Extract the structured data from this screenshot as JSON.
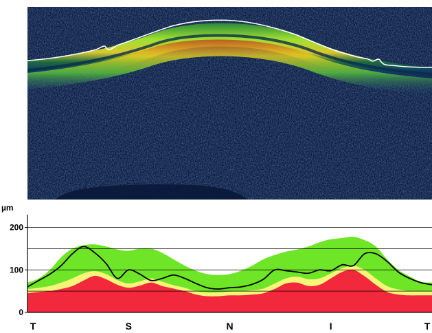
{
  "chart_data": {
    "type": "line",
    "title": "",
    "xlabel": "",
    "ylabel": "µm",
    "ylim": [
      0,
      230
    ],
    "yticks": [
      0,
      100,
      200
    ],
    "gridlines_y": [
      50,
      100,
      150,
      200
    ],
    "sector_labels": [
      "T",
      "S",
      "N",
      "I",
      "T"
    ],
    "sector_positions_deg": [
      0,
      90,
      180,
      270,
      360
    ],
    "x_domain_deg": [
      0,
      360
    ],
    "bands": {
      "x": [
        0,
        10,
        20,
        30,
        40,
        50,
        60,
        70,
        80,
        90,
        100,
        110,
        120,
        130,
        140,
        150,
        160,
        170,
        180,
        190,
        200,
        210,
        220,
        230,
        240,
        250,
        260,
        270,
        280,
        290,
        300,
        310,
        320,
        330,
        340,
        350,
        360
      ],
      "red_upper": [
        45,
        48,
        50,
        55,
        62,
        75,
        86,
        78,
        65,
        58,
        63,
        70,
        62,
        56,
        50,
        42,
        38,
        38,
        40,
        40,
        42,
        45,
        55,
        68,
        70,
        62,
        65,
        80,
        95,
        100,
        85,
        65,
        48,
        42,
        40,
        40,
        40
      ],
      "yellow_upper": [
        55,
        58,
        62,
        70,
        80,
        92,
        97,
        90,
        76,
        68,
        73,
        80,
        72,
        64,
        58,
        50,
        47,
        47,
        49,
        50,
        52,
        56,
        68,
        80,
        84,
        78,
        80,
        92,
        104,
        110,
        100,
        80,
        62,
        54,
        50,
        50,
        50
      ],
      "green_upper": [
        70,
        80,
        100,
        130,
        150,
        158,
        160,
        155,
        148,
        145,
        150,
        150,
        140,
        125,
        110,
        98,
        90,
        88,
        90,
        98,
        110,
        125,
        135,
        143,
        148,
        155,
        165,
        172,
        175,
        178,
        170,
        155,
        125,
        100,
        85,
        72,
        70
      ]
    },
    "series": [
      {
        "x": [
          0,
          10,
          20,
          30,
          40,
          50,
          60,
          70,
          80,
          90,
          100,
          110,
          120,
          130,
          140,
          150,
          160,
          170,
          180,
          190,
          200,
          210,
          220,
          230,
          240,
          250,
          260,
          270,
          280,
          290,
          300,
          310,
          320,
          330,
          340,
          350,
          360
        ],
        "values": [
          60,
          75,
          90,
          110,
          138,
          155,
          140,
          115,
          80,
          100,
          90,
          75,
          80,
          88,
          80,
          68,
          58,
          55,
          58,
          60,
          66,
          78,
          100,
          98,
          95,
          92,
          100,
          98,
          112,
          110,
          138,
          138,
          120,
          95,
          80,
          70,
          65
        ]
      }
    ],
    "grid": true,
    "legend": "none"
  },
  "colors": {
    "red_band": "#f2293d",
    "yellow_band": "#f6f57a",
    "green_band": "#6ee526",
    "thickness_line": "#000000",
    "scan_bg": "#0b1a3a"
  }
}
